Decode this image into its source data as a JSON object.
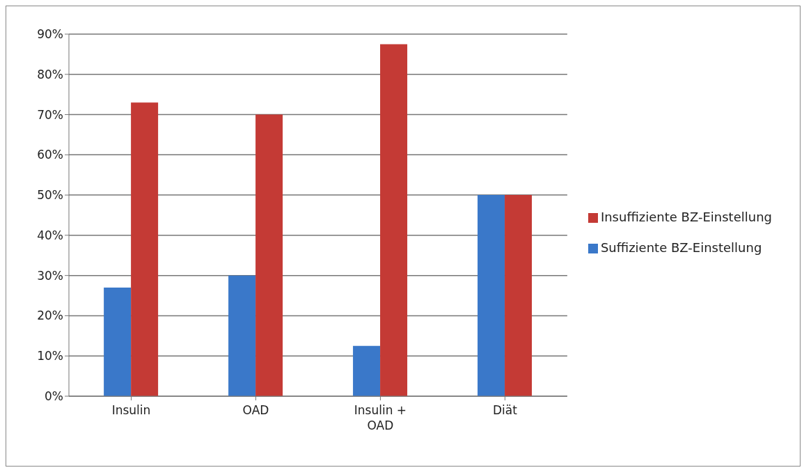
{
  "chart_data": {
    "type": "bar",
    "categories": [
      "Insulin",
      "OAD",
      "Insulin + OAD",
      "Diät"
    ],
    "series": [
      {
        "name": "Suffiziente BZ-Einstellung",
        "color": "#3a78c9",
        "values": [
          27,
          30,
          12.5,
          50
        ]
      },
      {
        "name": "Insuffiziente BZ-Einstellung",
        "color": "#c43a35",
        "values": [
          73,
          70,
          87.5,
          50
        ]
      }
    ],
    "ylim": [
      0,
      90
    ],
    "yticks": [
      {
        "value": 0,
        "label": "0%"
      },
      {
        "value": 10,
        "label": "10%"
      },
      {
        "value": 20,
        "label": "20%"
      },
      {
        "value": 30,
        "label": "30%"
      },
      {
        "value": 40,
        "label": "40%"
      },
      {
        "value": 50,
        "label": "50%"
      },
      {
        "value": 60,
        "label": "60%"
      },
      {
        "value": 70,
        "label": "70%"
      },
      {
        "value": 80,
        "label": "80%"
      },
      {
        "value": 90,
        "label": "90%"
      }
    ],
    "grid": "y",
    "legend": "right"
  }
}
